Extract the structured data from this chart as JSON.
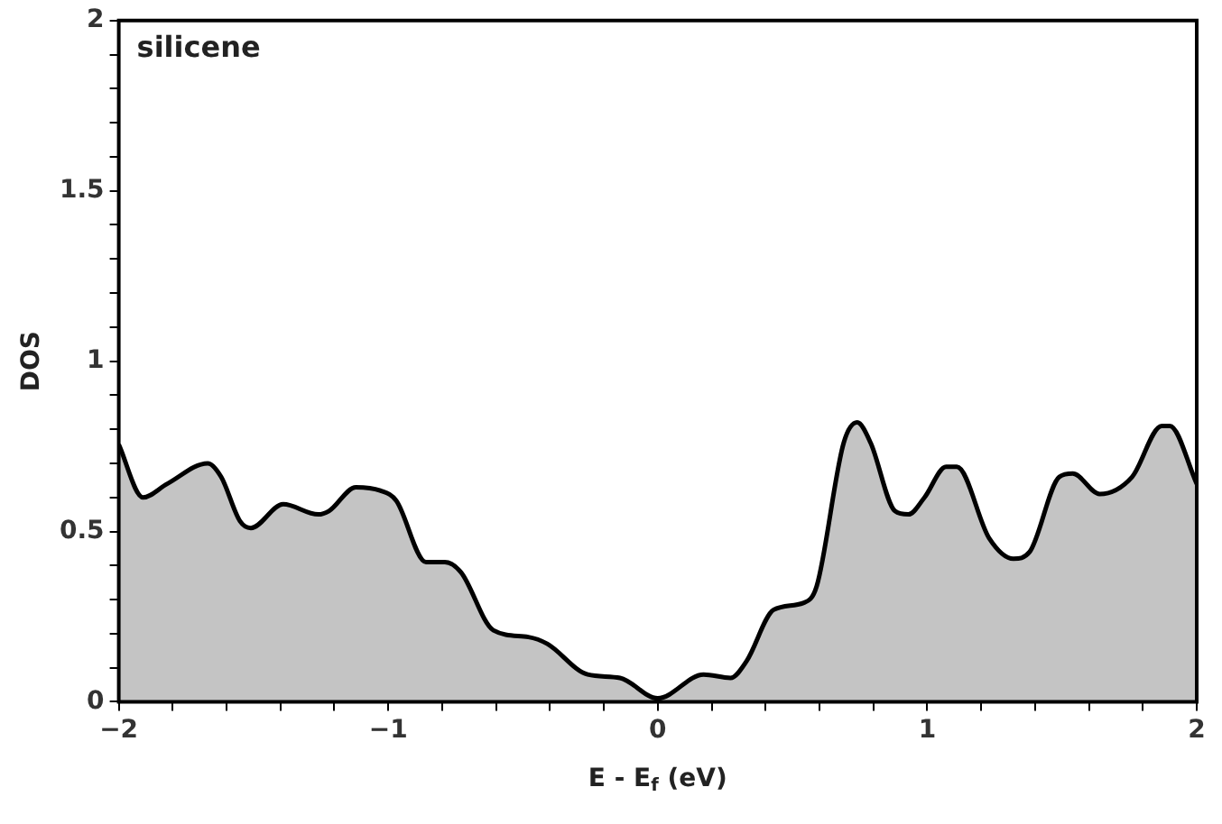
{
  "chart_data": {
    "type": "area",
    "xlabel": "E - E$_{f}$ (eV)",
    "ylabel": "DOS",
    "annotations": [
      "silicene"
    ],
    "x": [
      -2,
      -1.91,
      -1.82,
      -1.67,
      -1.62,
      -1.55,
      -1.51,
      -1.39,
      -1.26,
      -1.22,
      -1.12,
      -1.03,
      -0.97,
      -0.86,
      -0.79,
      -0.73,
      -0.61,
      -0.48,
      -0.41,
      -0.26,
      -0.14,
      0,
      0.17,
      0.27,
      0.33,
      0.43,
      0.54,
      0.59,
      0.69,
      0.74,
      0.79,
      0.88,
      0.93,
      0.99,
      1.07,
      1.11,
      1.23,
      1.32,
      1.38,
      1.49,
      1.54,
      1.64,
      1.76,
      1.87,
      1.9,
      2
    ],
    "series": [
      {
        "color": "#c4c4c4",
        "values": [
          0.755,
          0.6,
          0.64,
          0.7,
          0.66,
          0.53,
          0.51,
          0.58,
          0.55,
          0.56,
          0.63,
          0.62,
          0.59,
          0.41,
          0.41,
          0.38,
          0.21,
          0.19,
          0.17,
          0.08,
          0.07,
          0.01,
          0.08,
          0.07,
          0.12,
          0.27,
          0.29,
          0.34,
          0.76,
          0.82,
          0.76,
          0.56,
          0.55,
          0.6,
          0.69,
          0.69,
          0.48,
          0.42,
          0.44,
          0.66,
          0.67,
          0.61,
          0.66,
          0.81,
          0.81,
          0.64
        ]
      }
    ],
    "xlim": [
      -2,
      2
    ],
    "ylim": [
      0,
      2
    ],
    "xticks": [
      {
        "value": -2,
        "label": "−2"
      },
      {
        "value": -1.8,
        "label": null
      },
      {
        "value": -1.6,
        "label": null
      },
      {
        "value": -1.4,
        "label": null
      },
      {
        "value": -1.2,
        "label": null
      },
      {
        "value": -1,
        "label": "−1"
      },
      {
        "value": -0.8,
        "label": null
      },
      {
        "value": -0.6,
        "label": null
      },
      {
        "value": -0.4,
        "label": null
      },
      {
        "value": -0.2,
        "label": null
      },
      0,
      {
        "value": 0.2,
        "label": null
      },
      {
        "value": 0.4,
        "label": null
      },
      {
        "value": 0.6,
        "label": null
      },
      {
        "value": 0.8,
        "label": null
      },
      1,
      {
        "value": 1.2,
        "label": null
      },
      {
        "value": 1.4,
        "label": null
      },
      {
        "value": 1.6,
        "label": null
      },
      {
        "value": 1.8,
        "label": null
      },
      2
    ],
    "yticks": [
      0,
      {
        "value": 0.1,
        "label": null
      },
      {
        "value": 0.2,
        "label": null
      },
      {
        "value": 0.3,
        "label": null
      },
      {
        "value": 0.4,
        "label": null
      },
      0.5,
      {
        "value": 0.6,
        "label": null
      },
      {
        "value": 0.7,
        "label": null
      },
      {
        "value": 0.8,
        "label": null
      },
      {
        "value": 0.9,
        "label": null
      },
      1,
      {
        "value": 1.1,
        "label": null
      },
      {
        "value": 1.2,
        "label": null
      },
      {
        "value": 1.3,
        "label": null
      },
      {
        "value": 1.4,
        "label": null
      },
      1.5,
      {
        "value": 1.6,
        "label": null
      },
      {
        "value": 1.7,
        "label": null
      },
      {
        "value": 1.8,
        "label": null
      },
      {
        "value": 1.9,
        "label": null
      },
      2
    ],
    "grid": false,
    "legend": false,
    "marker": "none",
    "line_style": "solid"
  }
}
